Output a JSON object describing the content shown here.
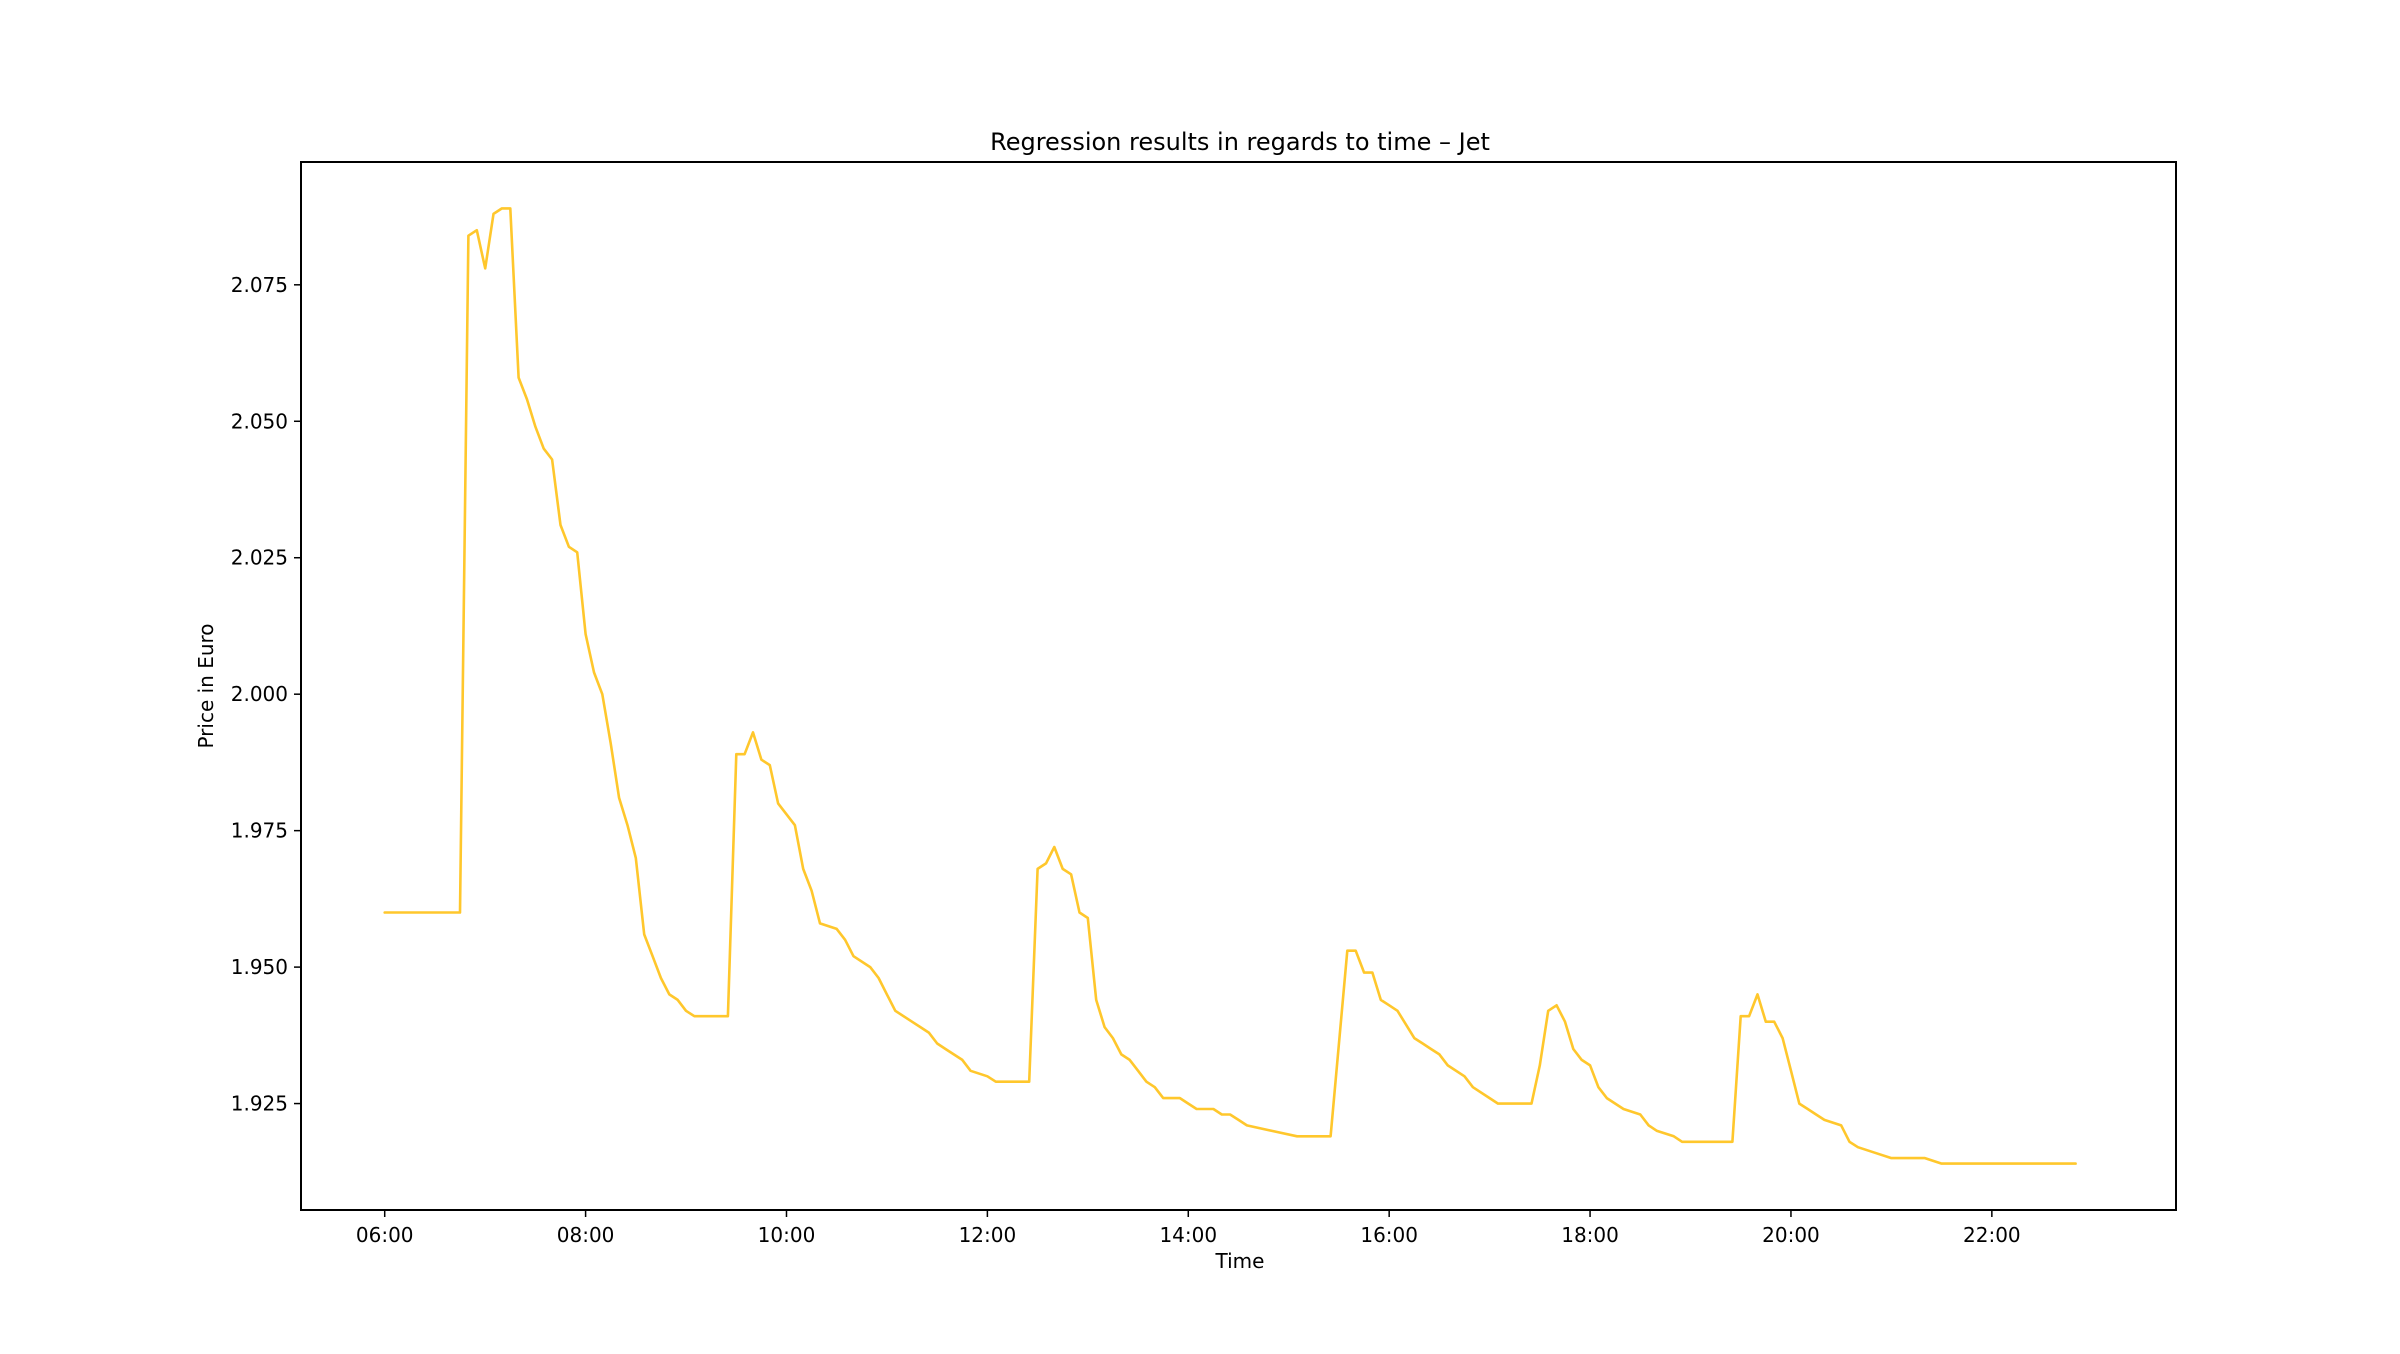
{
  "chart_data": {
    "type": "line",
    "title": "Regression results in regards to time – Jet",
    "xlabel": "Time",
    "ylabel": "Price in Euro",
    "xlim": [
      "05:10",
      "23:50"
    ],
    "ylim": [
      1.9055,
      2.0975
    ],
    "x_ticks": [
      "06:00",
      "08:00",
      "10:00",
      "12:00",
      "14:00",
      "16:00",
      "18:00",
      "20:00",
      "22:00"
    ],
    "y_ticks": [
      1.925,
      1.95,
      1.975,
      2.0,
      2.025,
      2.05,
      2.075
    ],
    "y_tick_labels": [
      "1.925",
      "1.950",
      "1.975",
      "2.000",
      "2.025",
      "2.050",
      "2.075"
    ],
    "grid": false,
    "legend": null,
    "series": [
      {
        "color": "#FFC72C",
        "points": [
          [
            "06:00",
            1.96
          ],
          [
            "06:45",
            1.96
          ],
          [
            "06:50",
            2.084
          ],
          [
            "06:55",
            2.085
          ],
          [
            "07:00",
            2.078
          ],
          [
            "07:05",
            2.088
          ],
          [
            "07:10",
            2.089
          ],
          [
            "07:15",
            2.089
          ],
          [
            "07:20",
            2.058
          ],
          [
            "07:25",
            2.054
          ],
          [
            "07:30",
            2.049
          ],
          [
            "07:35",
            2.045
          ],
          [
            "07:40",
            2.043
          ],
          [
            "07:45",
            2.031
          ],
          [
            "07:50",
            2.027
          ],
          [
            "07:55",
            2.026
          ],
          [
            "08:00",
            2.011
          ],
          [
            "08:05",
            2.004
          ],
          [
            "08:10",
            2.0
          ],
          [
            "08:15",
            1.991
          ],
          [
            "08:20",
            1.981
          ],
          [
            "08:25",
            1.976
          ],
          [
            "08:30",
            1.97
          ],
          [
            "08:35",
            1.956
          ],
          [
            "08:40",
            1.952
          ],
          [
            "08:45",
            1.948
          ],
          [
            "08:50",
            1.945
          ],
          [
            "08:55",
            1.944
          ],
          [
            "09:00",
            1.942
          ],
          [
            "09:05",
            1.941
          ],
          [
            "09:25",
            1.941
          ],
          [
            "09:30",
            1.989
          ],
          [
            "09:35",
            1.989
          ],
          [
            "09:40",
            1.993
          ],
          [
            "09:45",
            1.988
          ],
          [
            "09:50",
            1.987
          ],
          [
            "09:55",
            1.98
          ],
          [
            "10:00",
            1.978
          ],
          [
            "10:05",
            1.976
          ],
          [
            "10:10",
            1.968
          ],
          [
            "10:15",
            1.964
          ],
          [
            "10:20",
            1.958
          ],
          [
            "10:30",
            1.957
          ],
          [
            "10:35",
            1.955
          ],
          [
            "10:40",
            1.952
          ],
          [
            "10:50",
            1.95
          ],
          [
            "10:55",
            1.948
          ],
          [
            "11:00",
            1.945
          ],
          [
            "11:05",
            1.942
          ],
          [
            "11:15",
            1.94
          ],
          [
            "11:20",
            1.939
          ],
          [
            "11:25",
            1.938
          ],
          [
            "11:30",
            1.936
          ],
          [
            "11:35",
            1.935
          ],
          [
            "11:45",
            1.933
          ],
          [
            "11:50",
            1.931
          ],
          [
            "12:00",
            1.93
          ],
          [
            "12:05",
            1.929
          ],
          [
            "12:25",
            1.929
          ],
          [
            "12:30",
            1.968
          ],
          [
            "12:35",
            1.969
          ],
          [
            "12:40",
            1.972
          ],
          [
            "12:45",
            1.968
          ],
          [
            "12:50",
            1.967
          ],
          [
            "12:55",
            1.96
          ],
          [
            "13:00",
            1.959
          ],
          [
            "13:05",
            1.944
          ],
          [
            "13:10",
            1.939
          ],
          [
            "13:15",
            1.937
          ],
          [
            "13:20",
            1.934
          ],
          [
            "13:25",
            1.933
          ],
          [
            "13:30",
            1.931
          ],
          [
            "13:35",
            1.929
          ],
          [
            "13:40",
            1.928
          ],
          [
            "13:45",
            1.926
          ],
          [
            "13:55",
            1.926
          ],
          [
            "14:00",
            1.925
          ],
          [
            "14:05",
            1.924
          ],
          [
            "14:15",
            1.924
          ],
          [
            "14:20",
            1.923
          ],
          [
            "14:25",
            1.923
          ],
          [
            "14:30",
            1.922
          ],
          [
            "14:35",
            1.921
          ],
          [
            "14:50",
            1.92
          ],
          [
            "15:05",
            1.919
          ],
          [
            "15:25",
            1.919
          ],
          [
            "15:35",
            1.953
          ],
          [
            "15:40",
            1.953
          ],
          [
            "15:45",
            1.949
          ],
          [
            "15:50",
            1.949
          ],
          [
            "15:55",
            1.944
          ],
          [
            "16:00",
            1.943
          ],
          [
            "16:05",
            1.942
          ],
          [
            "16:15",
            1.937
          ],
          [
            "16:20",
            1.936
          ],
          [
            "16:25",
            1.935
          ],
          [
            "16:30",
            1.934
          ],
          [
            "16:35",
            1.932
          ],
          [
            "16:45",
            1.93
          ],
          [
            "16:50",
            1.928
          ],
          [
            "17:00",
            1.926
          ],
          [
            "17:05",
            1.925
          ],
          [
            "17:25",
            1.925
          ],
          [
            "17:30",
            1.932
          ],
          [
            "17:35",
            1.942
          ],
          [
            "17:40",
            1.943
          ],
          [
            "17:45",
            1.94
          ],
          [
            "17:50",
            1.935
          ],
          [
            "17:55",
            1.933
          ],
          [
            "18:00",
            1.932
          ],
          [
            "18:05",
            1.928
          ],
          [
            "18:10",
            1.926
          ],
          [
            "18:20",
            1.924
          ],
          [
            "18:30",
            1.923
          ],
          [
            "18:35",
            1.921
          ],
          [
            "18:40",
            1.92
          ],
          [
            "18:50",
            1.919
          ],
          [
            "18:55",
            1.918
          ],
          [
            "19:00",
            1.918
          ],
          [
            "19:05",
            1.918
          ],
          [
            "19:25",
            1.918
          ],
          [
            "19:30",
            1.941
          ],
          [
            "19:35",
            1.941
          ],
          [
            "19:40",
            1.945
          ],
          [
            "19:45",
            1.94
          ],
          [
            "19:50",
            1.94
          ],
          [
            "19:55",
            1.937
          ],
          [
            "20:00",
            1.931
          ],
          [
            "20:05",
            1.925
          ],
          [
            "20:10",
            1.924
          ],
          [
            "20:15",
            1.923
          ],
          [
            "20:20",
            1.922
          ],
          [
            "20:30",
            1.921
          ],
          [
            "20:35",
            1.918
          ],
          [
            "20:40",
            1.917
          ],
          [
            "20:50",
            1.916
          ],
          [
            "21:00",
            1.915
          ],
          [
            "21:20",
            1.915
          ],
          [
            "21:30",
            1.914
          ],
          [
            "21:45",
            1.914
          ],
          [
            "22:00",
            1.914
          ],
          [
            "22:10",
            1.914
          ],
          [
            "22:50",
            1.914
          ]
        ]
      }
    ]
  }
}
